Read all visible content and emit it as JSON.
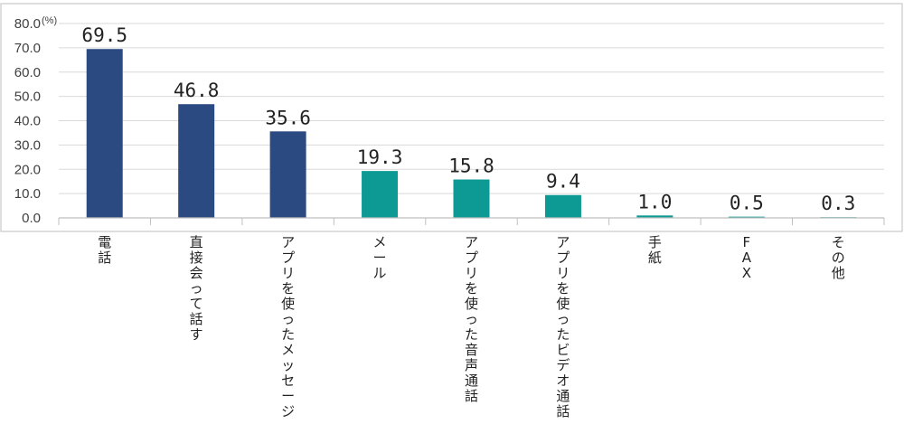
{
  "chart_data": {
    "type": "bar",
    "unit_label": "(%)",
    "ylim": [
      0,
      80
    ],
    "ytick_step": 10,
    "ytick_labels": [
      "0.0",
      "10.0",
      "20.0",
      "30.0",
      "40.0",
      "50.0",
      "60.0",
      "70.0",
      "80.0"
    ],
    "grid": true,
    "categories": [
      "電話",
      "直接会って話す",
      "アプリを使ったメッセージ",
      "メール",
      "アプリを使った音声通話",
      "アプリを使ったビデオ通話",
      "手紙",
      "FAX",
      "その他"
    ],
    "values": [
      69.5,
      46.8,
      35.6,
      19.3,
      15.8,
      9.4,
      1.0,
      0.5,
      0.3
    ],
    "value_labels": [
      "69.5",
      "46.8",
      "35.6",
      "19.3",
      "15.8",
      "9.4",
      "1.0",
      "0.5",
      "0.3"
    ],
    "bar_colors": [
      "#2b4a81",
      "#2b4a81",
      "#2b4a81",
      "#0d9a94",
      "#0d9a94",
      "#0d9a94",
      "#0d9a94",
      "#0d9a94",
      "#0d9a94"
    ]
  }
}
